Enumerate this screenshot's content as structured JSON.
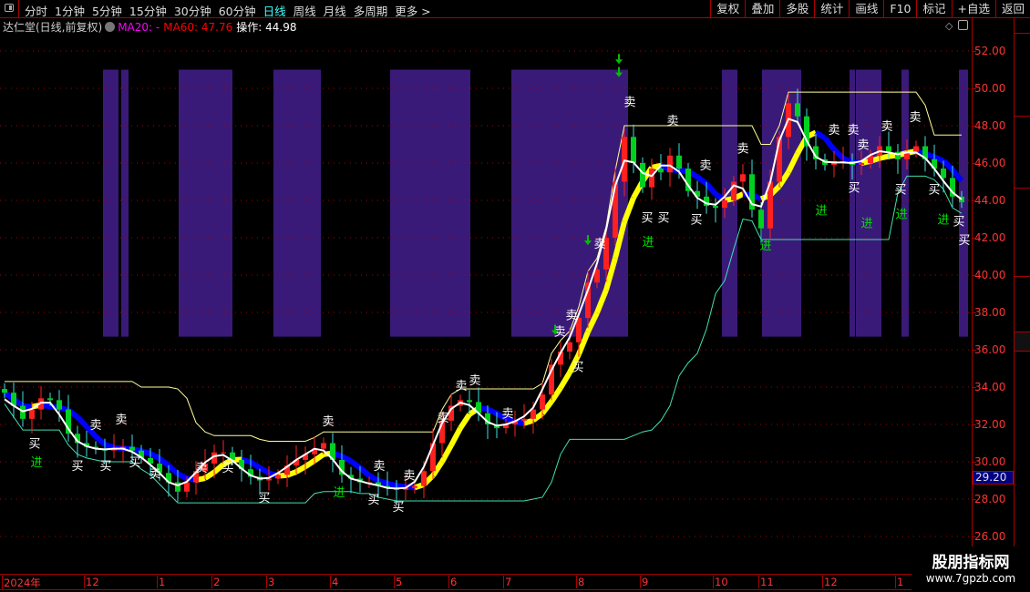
{
  "toolbar": {
    "periods": [
      "分时",
      "1分钟",
      "5分钟",
      "15分钟",
      "30分钟",
      "60分钟",
      "日线",
      "周线",
      "月线",
      "多周期",
      "更多 >"
    ],
    "active_period": "日线",
    "buttons": [
      "复权",
      "叠加",
      "多股",
      "统计",
      "画线",
      "F10",
      "标记",
      "+自选",
      "返回"
    ]
  },
  "info": {
    "title": "达仁堂(日线,前复权)",
    "ma20": "MA20: -",
    "ma60": "MA60: 47.76",
    "op": "操作: 44.98"
  },
  "price_tag": "29.20",
  "watermark": {
    "name": "股朋指标网",
    "url": "www.7gpzb.com"
  },
  "colors": {
    "up": "#ff2020",
    "down": "#00d020",
    "down_wick": "#40e0e0",
    "ma_fast": "#ffffff",
    "band_up": "#ffff00",
    "band_down": "#0000ff",
    "zone": "#3a1a78",
    "resist": "#ffff99",
    "support": "#40e0b0",
    "signal_sell": "#ffffff",
    "signal_buy": "#ffffff",
    "signal_enter": "#00e000",
    "grid": "#aa0000"
  },
  "chart_data": {
    "type": "candlestick",
    "ylim": [
      25.5,
      52.9
    ],
    "y_ticks": [
      "52.00",
      "50.00",
      "48.00",
      "46.00",
      "44.00",
      "42.00",
      "40.00",
      "38.00",
      "36.00",
      "34.00",
      "32.00",
      "30.00",
      "28.00",
      "26.00"
    ],
    "grid": true,
    "x_ticks": [
      {
        "label": "2024年",
        "bar": 0
      },
      {
        "label": "12",
        "bar": 9
      },
      {
        "label": "1",
        "bar": 17
      },
      {
        "label": "2",
        "bar": 23
      },
      {
        "label": "3",
        "bar": 29
      },
      {
        "label": "4",
        "bar": 36
      },
      {
        "label": "5",
        "bar": 43
      },
      {
        "label": "6",
        "bar": 49
      },
      {
        "label": "7",
        "bar": 55
      },
      {
        "label": "8",
        "bar": 63
      },
      {
        "label": "9",
        "bar": 70
      },
      {
        "label": "10",
        "bar": 78
      },
      {
        "label": "11",
        "bar": 83
      },
      {
        "label": "12",
        "bar": 90
      },
      {
        "label": "1",
        "bar": 98
      }
    ],
    "close": [
      33.7,
      33.0,
      32.3,
      32.8,
      33.4,
      33.3,
      32.8,
      31.5,
      31.0,
      30.8,
      30.7,
      30.6,
      30.7,
      30.8,
      30.6,
      30.2,
      29.9,
      29.4,
      28.9,
      28.4,
      28.9,
      29.5,
      29.9,
      30.5,
      30.5,
      30.1,
      29.6,
      29.2,
      29.0,
      29.1,
      29.3,
      29.8,
      30.1,
      30.4,
      30.7,
      31.0,
      30.1,
      29.3,
      29.1,
      28.9,
      28.9,
      28.7,
      28.6,
      28.5,
      28.6,
      28.7,
      29.5,
      31.0,
      32.2,
      33.0,
      33.3,
      33.2,
      32.6,
      32.0,
      31.8,
      32.0,
      32.2,
      32.3,
      32.8,
      33.6,
      35.2,
      35.9,
      36.4,
      37.7,
      39.6,
      40.3,
      42.0,
      45.0,
      47.4,
      46.0,
      44.7,
      45.7,
      45.5,
      46.4,
      45.7,
      44.5,
      44.2,
      43.7,
      43.6,
      44.0,
      45.0,
      45.4,
      43.5,
      42.5,
      45.0,
      47.4,
      49.2,
      48.5,
      46.9,
      46.2,
      45.9,
      46.1,
      46.1,
      45.9,
      46.0,
      46.4,
      46.9,
      46.6,
      46.2,
      46.6,
      46.9,
      46.2,
      45.7,
      45.2,
      44.2,
      43.9
    ],
    "highlight_zones": [
      {
        "from": 11.3,
        "to": 13.0
      },
      {
        "from": 13.3,
        "to": 14.1
      },
      {
        "from": 19.6,
        "to": 25.5
      },
      {
        "from": 30.0,
        "to": 35.2
      },
      {
        "from": 42.8,
        "to": 51.6
      },
      {
        "from": 56.1,
        "to": 68.9
      },
      {
        "from": 79.2,
        "to": 80.9
      },
      {
        "from": 83.6,
        "to": 87.9
      },
      {
        "from": 93.2,
        "to": 93.8
      },
      {
        "from": 93.9,
        "to": 96.7
      },
      {
        "from": 98.9,
        "to": 99.7
      },
      {
        "from": 105.2,
        "to": 106.2
      }
    ],
    "zone_price_range": [
      36.7,
      51.0
    ],
    "signals": [
      {
        "text": "卖",
        "bar": 10,
        "price": 32.0
      },
      {
        "text": "卖",
        "bar": 12.8,
        "price": 32.3
      },
      {
        "text": "卖",
        "bar": 35.5,
        "price": 32.2
      },
      {
        "text": "卖",
        "bar": 21.6,
        "price": 29.7
      },
      {
        "text": "卖",
        "bar": 16.5,
        "price": 29.4
      },
      {
        "text": "卖",
        "bar": 41.1,
        "price": 29.8
      },
      {
        "text": "卖",
        "bar": 44.4,
        "price": 29.3
      },
      {
        "text": "卖",
        "bar": 48.1,
        "price": 32.4
      },
      {
        "text": "卖",
        "bar": 50.1,
        "price": 34.1
      },
      {
        "text": "卖",
        "bar": 51.6,
        "price": 34.4
      },
      {
        "text": "卖",
        "bar": 55.2,
        "price": 32.6
      },
      {
        "text": "卖",
        "bar": 60.9,
        "price": 37.0
      },
      {
        "text": "卖",
        "bar": 62.2,
        "price": 37.5
      },
      {
        "text": "卖",
        "bar": 65.3,
        "price": 41.7
      },
      {
        "text": "卖",
        "bar": 68.6,
        "price": 49.3
      },
      {
        "text": "卖",
        "bar": 73.3,
        "price": 48.3
      },
      {
        "text": "卖",
        "bar": 76.9,
        "price": 45.9
      },
      {
        "text": "卖",
        "bar": 81,
        "price": 46.8
      },
      {
        "text": "卖",
        "bar": 91,
        "price": 47.8
      },
      {
        "text": "卖",
        "bar": 92.3,
        "price": 47.8
      },
      {
        "text": "卖",
        "bar": 94.2,
        "price": 47.4
      },
      {
        "text": "卖",
        "bar": 96.8,
        "price": 48.0
      },
      {
        "text": "卖",
        "bar": 99.9,
        "price": 48.5
      },
      {
        "text": "买",
        "bar": 3.3,
        "price": 31.0
      },
      {
        "text": "买",
        "bar": 8,
        "price": 29.8
      },
      {
        "text": "买",
        "bar": 11.1,
        "price": 29.8
      },
      {
        "text": "买",
        "bar": 14.3,
        "price": 30.0
      },
      {
        "text": "买",
        "bar": 24.5,
        "price": 29.7
      },
      {
        "text": "买",
        "bar": 28.5,
        "price": 28.1
      },
      {
        "text": "买",
        "bar": 40.5,
        "price": 28.0
      },
      {
        "text": "买",
        "bar": 43.2,
        "price": 27.6
      },
      {
        "text": "买",
        "bar": 62.9,
        "price": 35.1
      },
      {
        "text": "买",
        "bar": 70.5,
        "price": 43.1
      },
      {
        "text": "买",
        "bar": 72.3,
        "price": 43.1
      },
      {
        "text": "买",
        "bar": 75.9,
        "price": 43.0
      },
      {
        "text": "买",
        "bar": 93.2,
        "price": 44.7
      },
      {
        "text": "买",
        "bar": 98.3,
        "price": 44.6
      },
      {
        "text": "买",
        "bar": 102,
        "price": 44.6
      },
      {
        "text": "买",
        "bar": 104.7,
        "price": 42.9
      },
      {
        "text": "买",
        "bar": 105.6,
        "price": 41.9
      },
      {
        "text": "进",
        "bar": 3.5,
        "price": 30.0
      },
      {
        "text": "进",
        "bar": 36.7,
        "price": 28.4
      },
      {
        "text": "进",
        "bar": 70.6,
        "price": 41.8
      },
      {
        "text": "进",
        "bar": 83.5,
        "price": 41.6
      },
      {
        "text": "进",
        "bar": 89.6,
        "price": 43.5
      },
      {
        "text": "进",
        "bar": 94.6,
        "price": 42.8
      },
      {
        "text": "进",
        "bar": 98.4,
        "price": 43.3
      },
      {
        "text": "进",
        "bar": 103,
        "price": 43.0
      }
    ],
    "arrows": [
      {
        "bar": 67.4,
        "price": 51.5
      },
      {
        "bar": 67.4,
        "price": 50.8
      },
      {
        "bar": 64,
        "price": 41.8
      },
      {
        "bar": 60.4,
        "price": 37.0
      }
    ]
  }
}
